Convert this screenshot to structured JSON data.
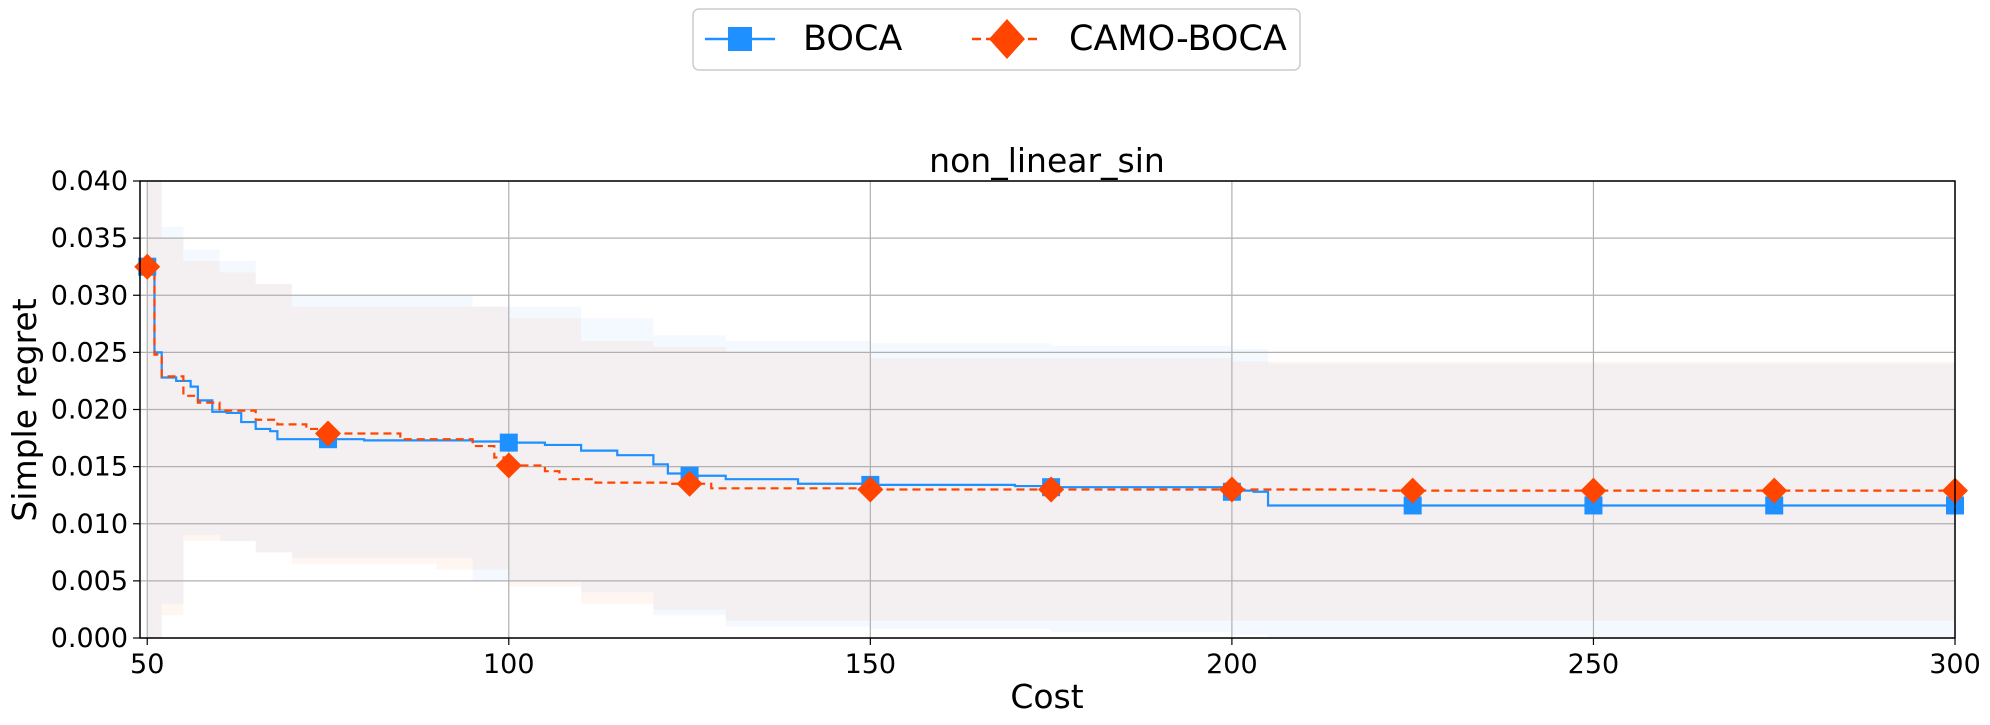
{
  "chart_data": {
    "type": "line",
    "title": "non_linear_sin",
    "xlabel": "Cost",
    "ylabel": "Simple regret",
    "xlim": [
      49,
      300
    ],
    "ylim": [
      0,
      0.04
    ],
    "xticks": [
      50,
      100,
      150,
      200,
      250,
      300
    ],
    "yticks": [
      0.0,
      0.005,
      0.01,
      0.015,
      0.02,
      0.025,
      0.03,
      0.035,
      0.04
    ],
    "xtick_labels": [
      "50",
      "100",
      "150",
      "200",
      "250",
      "300"
    ],
    "ytick_labels": [
      "0.000",
      "0.005",
      "0.010",
      "0.015",
      "0.020",
      "0.025",
      "0.030",
      "0.035",
      "0.040"
    ],
    "grid": true,
    "legend_position": "top-center, above plot",
    "series": [
      {
        "name": "BOCA",
        "color": "#1e90ff",
        "linestyle": "solid",
        "marker": "square",
        "line": [
          [
            50,
            0.0325
          ],
          [
            51,
            0.025
          ],
          [
            52,
            0.0228
          ],
          [
            54,
            0.0225
          ],
          [
            56,
            0.022
          ],
          [
            57,
            0.0208
          ],
          [
            59,
            0.0198
          ],
          [
            61,
            0.0197
          ],
          [
            63,
            0.0189
          ],
          [
            65,
            0.0183
          ],
          [
            67,
            0.0181
          ],
          [
            68,
            0.0174
          ],
          [
            75,
            0.0174
          ],
          [
            80,
            0.0173
          ],
          [
            95,
            0.0172
          ],
          [
            100,
            0.0171
          ],
          [
            105,
            0.0169
          ],
          [
            110,
            0.0164
          ],
          [
            115,
            0.016
          ],
          [
            120,
            0.0152
          ],
          [
            122,
            0.0144
          ],
          [
            125,
            0.0142
          ],
          [
            130,
            0.0139
          ],
          [
            140,
            0.0135
          ],
          [
            150,
            0.0134
          ],
          [
            170,
            0.0133
          ],
          [
            175,
            0.0132
          ],
          [
            200,
            0.0129
          ],
          [
            203,
            0.0128
          ],
          [
            205,
            0.0116
          ],
          [
            225,
            0.0116
          ],
          [
            300,
            0.0116
          ]
        ],
        "markers": [
          [
            50,
            0.0325
          ],
          [
            75,
            0.0174
          ],
          [
            100,
            0.0171
          ],
          [
            125,
            0.0142
          ],
          [
            150,
            0.0134
          ],
          [
            175,
            0.0132
          ],
          [
            200,
            0.0128
          ],
          [
            225,
            0.0116
          ],
          [
            250,
            0.0116
          ],
          [
            275,
            0.0116
          ],
          [
            300,
            0.0116
          ]
        ],
        "band": [
          [
            50,
            0.04,
            0.0
          ],
          [
            52,
            0.036,
            0.003
          ],
          [
            55,
            0.034,
            0.009
          ],
          [
            60,
            0.033,
            0.0085
          ],
          [
            65,
            0.031,
            0.0075
          ],
          [
            70,
            0.03,
            0.007
          ],
          [
            85,
            0.03,
            0.007
          ],
          [
            95,
            0.029,
            0.005
          ],
          [
            100,
            0.029,
            0.005
          ],
          [
            110,
            0.028,
            0.004
          ],
          [
            120,
            0.0265,
            0.002
          ],
          [
            130,
            0.026,
            0.001
          ],
          [
            150,
            0.0258,
            0.0008
          ],
          [
            175,
            0.0256,
            0.0005
          ],
          [
            200,
            0.0253,
            0.0003
          ],
          [
            205,
            0.024,
            0.0
          ],
          [
            300,
            0.024,
            0.0
          ]
        ]
      },
      {
        "name": "CAMO-BOCA",
        "color": "#ff4500",
        "linestyle": "dashed",
        "marker": "diamond",
        "line": [
          [
            50,
            0.0325
          ],
          [
            51,
            0.0248
          ],
          [
            52,
            0.0229
          ],
          [
            55,
            0.0212
          ],
          [
            57,
            0.0206
          ],
          [
            60,
            0.0199
          ],
          [
            65,
            0.0191
          ],
          [
            68,
            0.0187
          ],
          [
            72,
            0.0183
          ],
          [
            75,
            0.0179
          ],
          [
            85,
            0.0174
          ],
          [
            95,
            0.0168
          ],
          [
            98,
            0.0158
          ],
          [
            100,
            0.0151
          ],
          [
            105,
            0.0146
          ],
          [
            107,
            0.0139
          ],
          [
            112,
            0.0136
          ],
          [
            122,
            0.0135
          ],
          [
            125,
            0.0135
          ],
          [
            128,
            0.0131
          ],
          [
            150,
            0.013
          ],
          [
            175,
            0.013
          ],
          [
            200,
            0.013
          ],
          [
            220,
            0.0129
          ],
          [
            300,
            0.0129
          ]
        ],
        "markers": [
          [
            50,
            0.0325
          ],
          [
            75,
            0.0179
          ],
          [
            100,
            0.0151
          ],
          [
            125,
            0.0135
          ],
          [
            150,
            0.013
          ],
          [
            175,
            0.013
          ],
          [
            200,
            0.013
          ],
          [
            225,
            0.0129
          ],
          [
            250,
            0.0129
          ],
          [
            275,
            0.0129
          ],
          [
            300,
            0.0129
          ]
        ],
        "band": [
          [
            50,
            0.04,
            0.0
          ],
          [
            52,
            0.035,
            0.002
          ],
          [
            55,
            0.033,
            0.0085
          ],
          [
            60,
            0.032,
            0.0085
          ],
          [
            65,
            0.031,
            0.0075
          ],
          [
            70,
            0.029,
            0.0065
          ],
          [
            90,
            0.029,
            0.006
          ],
          [
            100,
            0.028,
            0.0045
          ],
          [
            110,
            0.026,
            0.003
          ],
          [
            120,
            0.0255,
            0.0025
          ],
          [
            130,
            0.025,
            0.0015
          ],
          [
            150,
            0.0245,
            0.0015
          ],
          [
            200,
            0.0242,
            0.0015
          ],
          [
            300,
            0.024,
            0.0015
          ]
        ]
      }
    ]
  }
}
